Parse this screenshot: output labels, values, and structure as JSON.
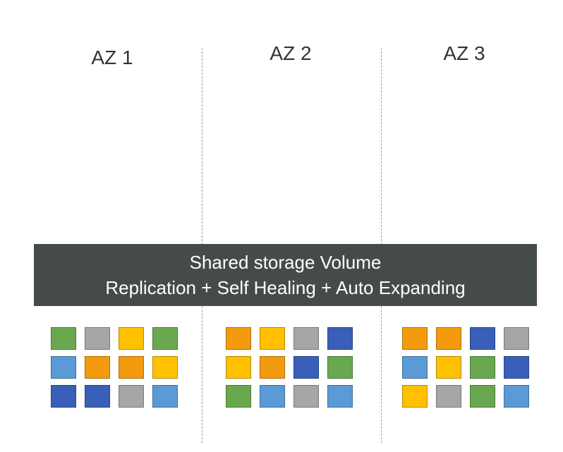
{
  "colors": {
    "green": "#6aa84f",
    "gray": "#a6a6a6",
    "yellow": "#ffc000",
    "orange": "#f39a0e",
    "lightblue": "#5b9bd5",
    "darkblue": "#3a5fb8",
    "bar_bg": "#454b4b"
  },
  "zones": [
    {
      "label": "AZ 1"
    },
    {
      "label": "AZ 2"
    },
    {
      "label": "AZ 3"
    }
  ],
  "storage": {
    "line1": "Shared storage Volume",
    "line2": "Replication + Self Healing + Auto Expanding"
  },
  "blocks": [
    [
      [
        "green",
        "gray",
        "yellow",
        "green"
      ],
      [
        "lightblue",
        "orange",
        "orange",
        "yellow"
      ],
      [
        "darkblue",
        "darkblue",
        "gray",
        "lightblue"
      ]
    ],
    [
      [
        "orange",
        "yellow",
        "gray",
        "darkblue"
      ],
      [
        "yellow",
        "orange",
        "darkblue",
        "green"
      ],
      [
        "green",
        "lightblue",
        "gray",
        "lightblue"
      ]
    ],
    [
      [
        "orange",
        "orange",
        "darkblue",
        "gray"
      ],
      [
        "lightblue",
        "yellow",
        "green",
        "darkblue"
      ],
      [
        "yellow",
        "gray",
        "green",
        "lightblue"
      ]
    ]
  ]
}
